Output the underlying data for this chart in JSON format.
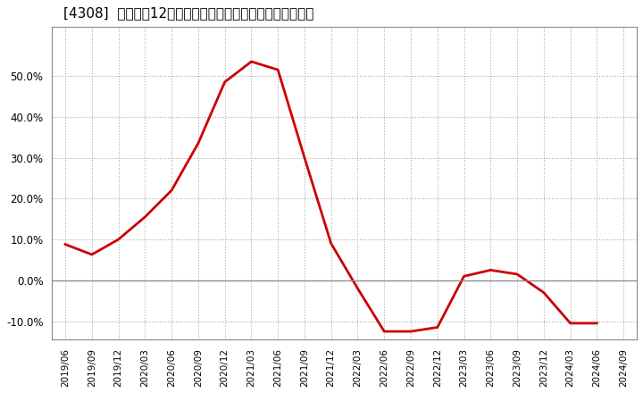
{
  "title": "[4308]  売上高の12か月移動合計の対前年同期増減率の推移",
  "line_color": "#cc0000",
  "background_color": "#ffffff",
  "plot_bg_color": "#ffffff",
  "grid_color": "#aaaaaa",
  "zero_line_color": "#888888",
  "dates": [
    "2019/06",
    "2019/09",
    "2019/12",
    "2020/03",
    "2020/06",
    "2020/09",
    "2020/12",
    "2021/03",
    "2021/06",
    "2021/09",
    "2021/12",
    "2022/03",
    "2022/06",
    "2022/09",
    "2022/12",
    "2023/03",
    "2023/06",
    "2023/09",
    "2023/12",
    "2024/03",
    "2024/06",
    "2024/09"
  ],
  "values": [
    0.088,
    0.063,
    0.1,
    0.155,
    0.22,
    0.335,
    0.485,
    0.535,
    0.515,
    0.3,
    0.09,
    -0.02,
    -0.125,
    -0.125,
    -0.115,
    0.01,
    0.025,
    0.015,
    -0.03,
    -0.105,
    -0.105,
    null
  ],
  "ylim": [
    -0.145,
    0.62
  ],
  "yticks": [
    -0.1,
    0.0,
    0.1,
    0.2,
    0.3,
    0.4,
    0.5
  ],
  "xlabel_fontsize": 7.5,
  "ylabel_fontsize": 8.5,
  "title_fontsize": 11,
  "linewidth": 2.0
}
